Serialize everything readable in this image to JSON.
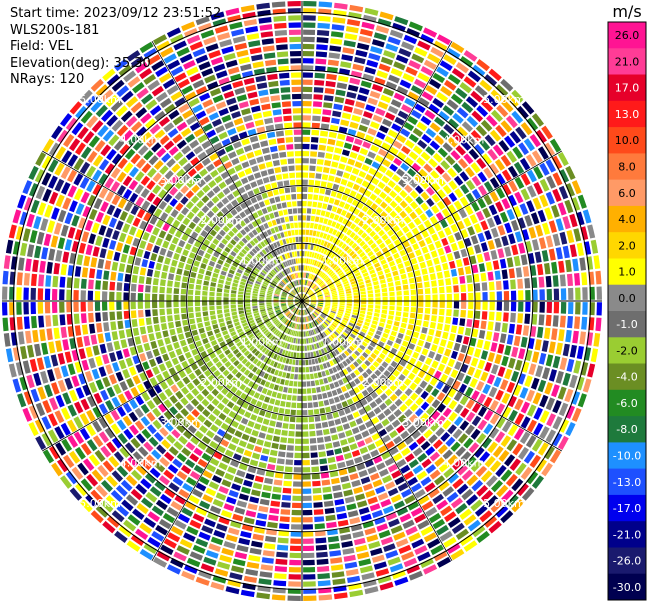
{
  "header": {
    "start_time": "Start time: 2023/09/12 23:51:52",
    "instrument": "WLS200s-181",
    "field": "Field: VEL",
    "elevation": "Elevation(deg): 35.30",
    "nrays": "NRays: 120"
  },
  "chart_data": {
    "type": "heatmap",
    "projection": "polar PPI",
    "field": "VEL",
    "nrays": 120,
    "range_ring_labels": [
      "1.00km",
      "2.00km",
      "3.00km",
      "4.00km",
      "5.00km"
    ],
    "range_rings_km": [
      1,
      2,
      3,
      4,
      5
    ],
    "max_range_km": 5.2,
    "colorbar": {
      "unit": "m/s",
      "ticks": [
        "26.0",
        "21.0",
        "17.0",
        "13.0",
        "10.0",
        "8.0",
        "6.0",
        "4.0",
        "2.0",
        "1.0",
        "0.0",
        "-1.0",
        "-2.0",
        "-4.0",
        "-6.0",
        "-8.0",
        "-10.0",
        "-13.0",
        "-17.0",
        "-21.0",
        "-26.0",
        "-30.0"
      ],
      "colors": [
        "#ff1493",
        "#ff3c96",
        "#e6002a",
        "#ff1a1a",
        "#ff4a1a",
        "#ff7a3c",
        "#ff9a66",
        "#ffb000",
        "#ffd700",
        "#ffff00",
        "#8a8a8a",
        "#6e6e6e",
        "#9acd32",
        "#6b8e23",
        "#228b22",
        "#1e7a3c",
        "#1e90ff",
        "#1e50ff",
        "#0000ee",
        "#00008b",
        "#1a1a6e",
        "#000050"
      ]
    }
  }
}
